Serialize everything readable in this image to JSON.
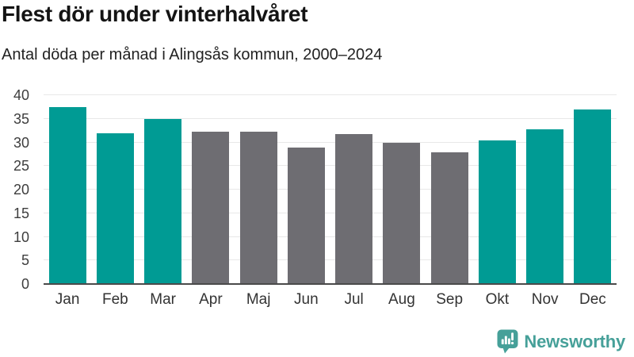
{
  "header": {
    "title": "Flest dör under vinterhalvåret",
    "subtitle": "Antal döda per månad i Alingsås kommun, 2000–2024"
  },
  "chart_data": {
    "type": "bar",
    "title": "Flest dör under vinterhalvåret",
    "subtitle": "Antal döda per månad i Alingsås kommun, 2000–2024",
    "categories": [
      "Jan",
      "Feb",
      "Mar",
      "Apr",
      "Maj",
      "Jun",
      "Jul",
      "Aug",
      "Sep",
      "Okt",
      "Nov",
      "Dec"
    ],
    "values": [
      37.4,
      32.0,
      35.0,
      32.2,
      32.2,
      28.9,
      31.8,
      30.0,
      27.9,
      30.5,
      32.7,
      36.9
    ],
    "series_name": "Antal döda per månad",
    "bar_seasons": [
      "winter",
      "winter",
      "winter",
      "summer",
      "summer",
      "summer",
      "summer",
      "summer",
      "summer",
      "winter",
      "winter",
      "winter"
    ],
    "colors": {
      "winter": "#009B94",
      "summer": "#6E6D72"
    },
    "xlabel": "",
    "ylabel": "",
    "ylim": [
      0,
      40
    ],
    "yticks": [
      0,
      5,
      10,
      15,
      20,
      25,
      30,
      35,
      40
    ],
    "grid": "horizontal",
    "legend": "none"
  },
  "footer": {
    "brand": "Newsworthy",
    "brand_color": "#46A099"
  }
}
